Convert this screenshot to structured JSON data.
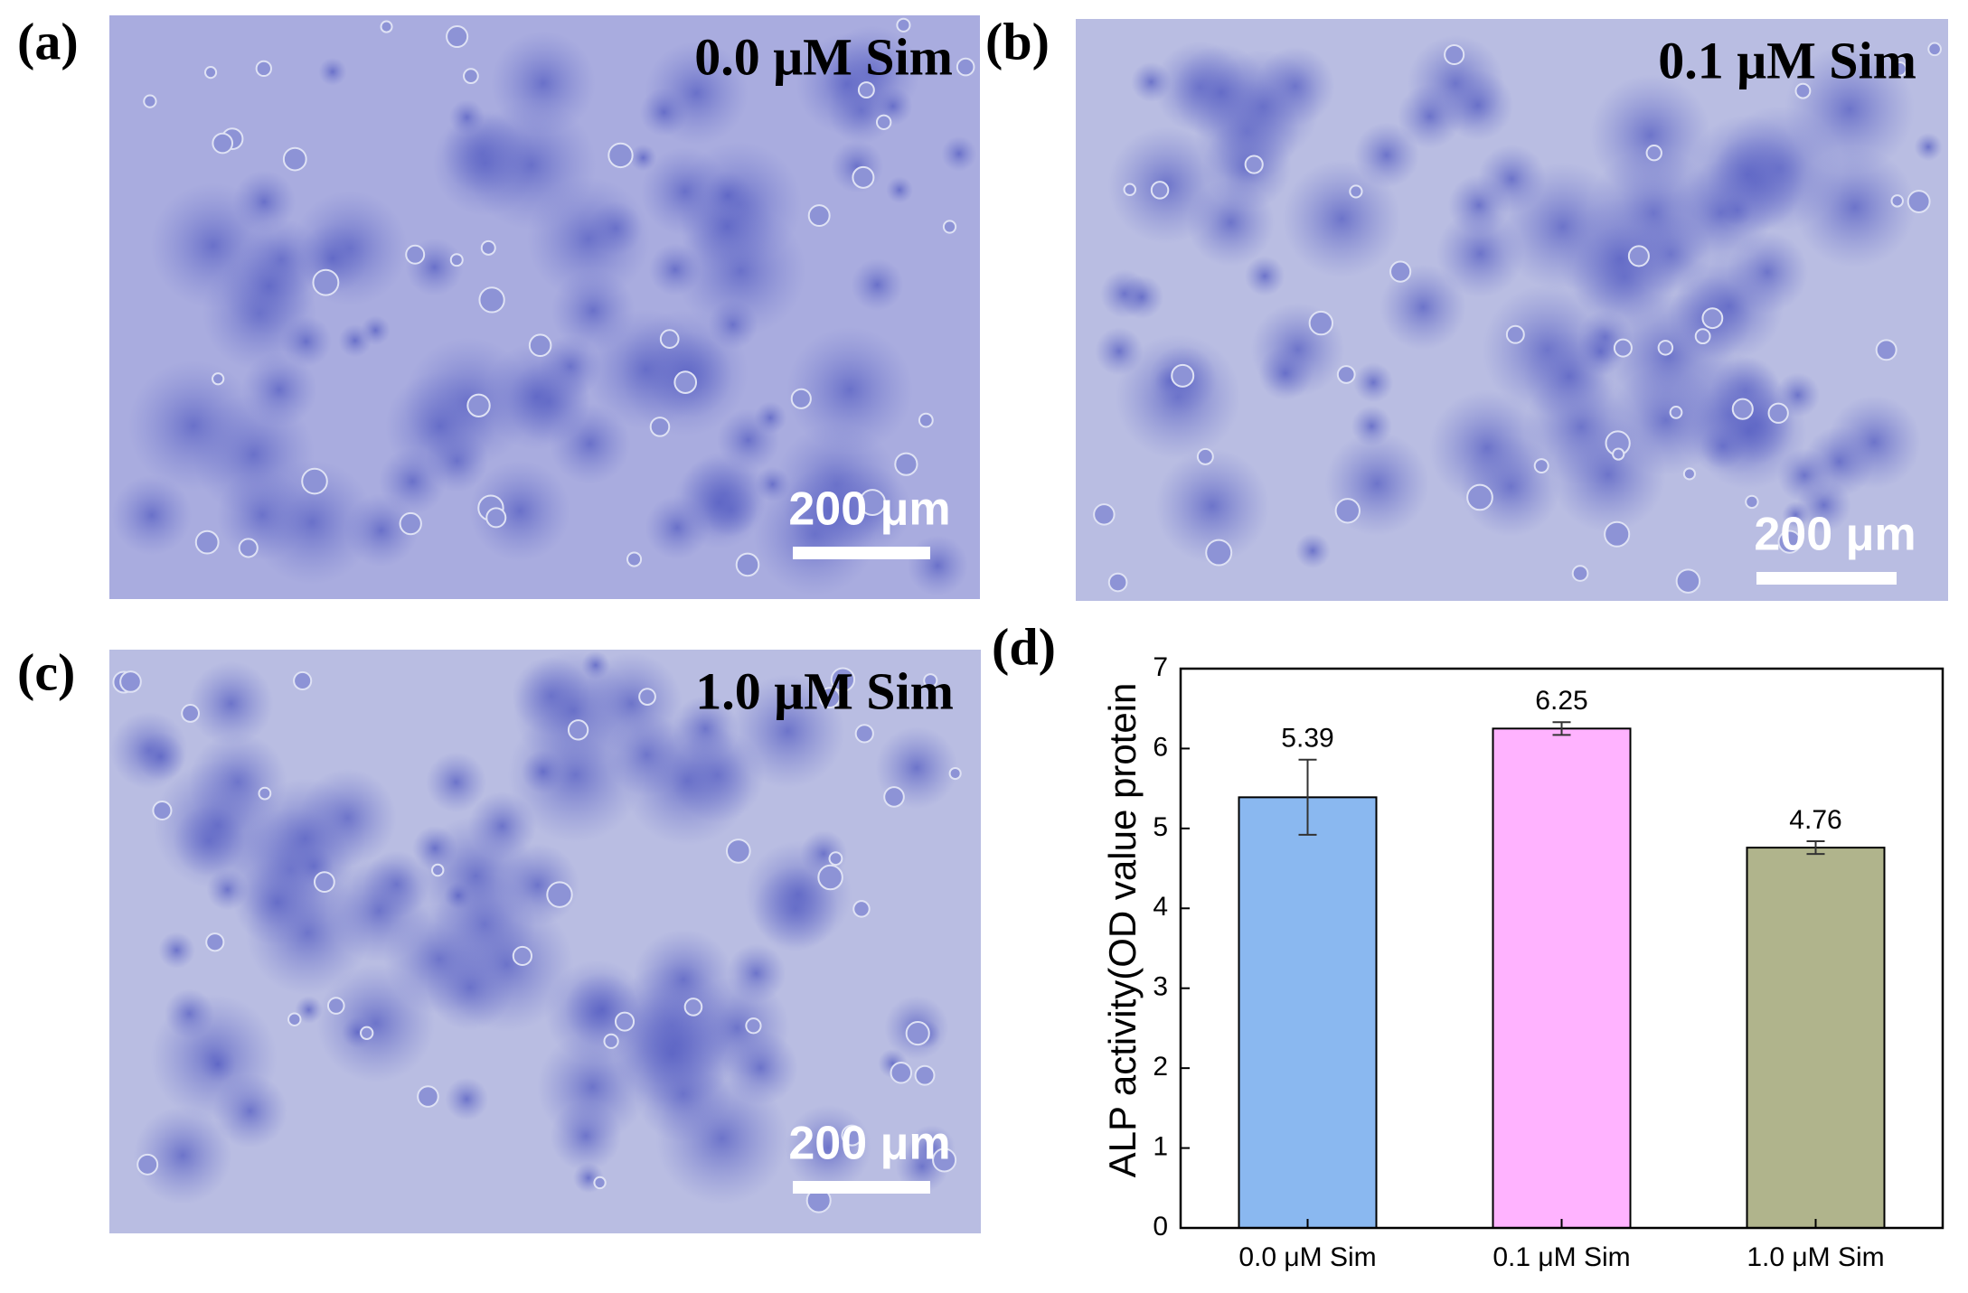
{
  "panels": [
    {
      "label": "(a)",
      "title": "0.0 μM Sim",
      "scale_bar": "200 μm"
    },
    {
      "label": "(b)",
      "title": "0.1 μM Sim",
      "scale_bar": "200 μm"
    },
    {
      "label": "(c)",
      "title": "1.0 μM Sim",
      "scale_bar": "200 μm"
    }
  ],
  "chart_data": {
    "type": "bar",
    "label": "(d)",
    "y_label": "ALP activity(OD value protein",
    "categories": [
      "0.0 μM Sim",
      "0.1 μM Sim",
      "1.0 μM Sim"
    ],
    "values": [
      5.39,
      6.25,
      4.76
    ],
    "errors": [
      0.47,
      0.08,
      0.08
    ],
    "colors": [
      "#8ab8f0",
      "#ffb3ff",
      "#b0b48c"
    ],
    "ylim": [
      0,
      7
    ],
    "yticks": [
      0,
      1,
      2,
      3,
      4,
      5,
      6,
      7
    ]
  }
}
